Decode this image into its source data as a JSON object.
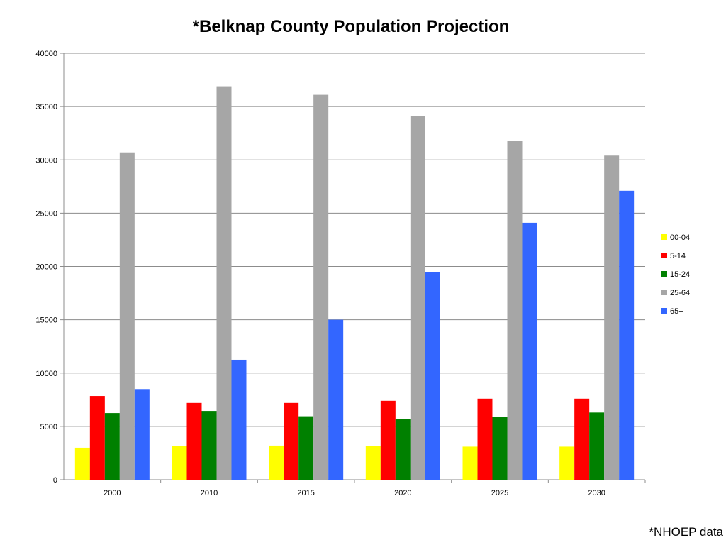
{
  "chart_data": {
    "type": "bar",
    "title": "*Belknap County Population Projection",
    "xlabel": "",
    "ylabel": "",
    "ylim": [
      0,
      40000
    ],
    "yticks": [
      0,
      5000,
      10000,
      15000,
      20000,
      25000,
      30000,
      35000,
      40000
    ],
    "grid": true,
    "legend_position": "right",
    "categories": [
      "2000",
      "2010",
      "2015",
      "2020",
      "2025",
      "2030"
    ],
    "series": [
      {
        "name": "00-04",
        "color": "#ffff00",
        "values": [
          3000,
          3150,
          3200,
          3150,
          3100,
          3100
        ]
      },
      {
        "name": "5-14",
        "color": "#ff0000",
        "values": [
          7850,
          7200,
          7200,
          7400,
          7600,
          7600
        ]
      },
      {
        "name": "15-24",
        "color": "#008000",
        "values": [
          6250,
          6450,
          5950,
          5700,
          5900,
          6300
        ]
      },
      {
        "name": "25-64",
        "color": "#a6a6a6",
        "values": [
          30700,
          36900,
          36100,
          34100,
          31800,
          30400
        ]
      },
      {
        "name": "65+",
        "color": "#3366ff",
        "values": [
          8500,
          11250,
          15000,
          19500,
          24100,
          27100
        ]
      }
    ]
  },
  "footer": {
    "source": "*NHOEP data"
  }
}
